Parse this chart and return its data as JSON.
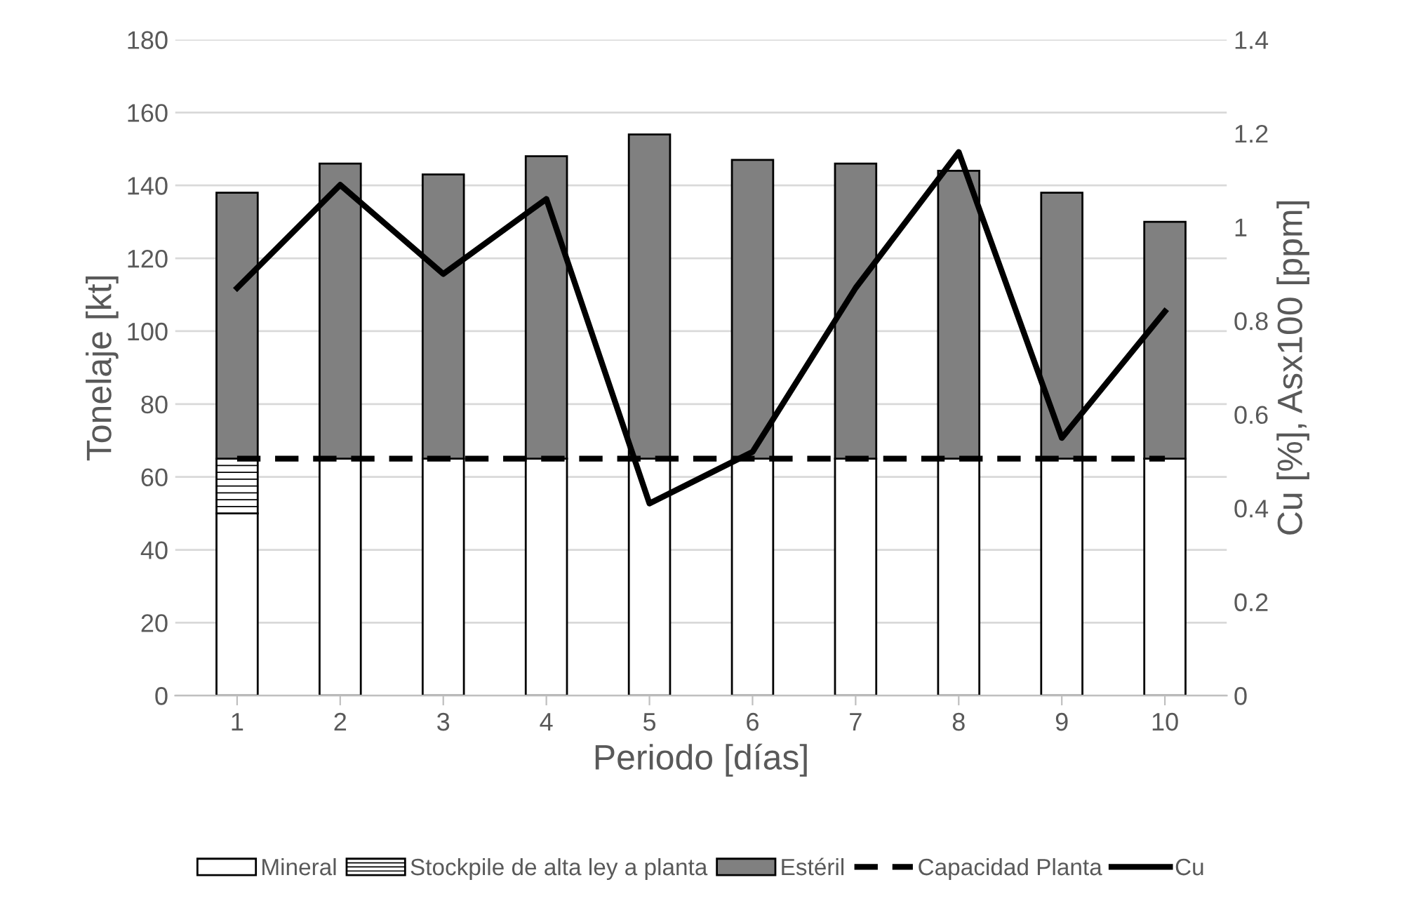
{
  "chart_data": {
    "type": "bar",
    "stacked": true,
    "xlabel": "Periodo [días]",
    "ylabel": "Tonelaje [kt]",
    "y2label": "Cu [%], Asx100 [ppm]",
    "categories": [
      "1",
      "2",
      "3",
      "4",
      "5",
      "6",
      "7",
      "8",
      "9",
      "10"
    ],
    "series": [
      {
        "name": "Mineral",
        "color": "#ffffff",
        "values": [
          50,
          65,
          65,
          65,
          65,
          65,
          65,
          65,
          65,
          65
        ]
      },
      {
        "name": "Stockpile de alta ley a planta",
        "color": "#ffffff",
        "values": [
          15,
          0,
          0,
          0,
          0,
          0,
          0,
          0,
          0,
          0
        ]
      },
      {
        "name": "Estéril",
        "color": "#808080",
        "values": [
          73,
          81,
          78,
          83,
          89,
          82,
          81,
          79,
          73,
          65
        ]
      },
      {
        "name": "Capacidad Planta",
        "type": "line",
        "color": "#000000",
        "line_style": "dashed",
        "values": [
          65,
          65,
          65,
          65,
          65,
          65,
          65,
          65,
          65,
          65
        ]
      },
      {
        "name": "Cu",
        "type": "line",
        "axis": "y2",
        "color": "#000000",
        "line_style": "solid",
        "values": [
          0.87,
          1.09,
          0.9,
          1.06,
          0.41,
          0.52,
          0.87,
          1.16,
          0.55,
          0.82
        ]
      }
    ],
    "ylim": [
      0,
      180
    ],
    "yticks": [
      0,
      20,
      40,
      60,
      80,
      100,
      120,
      140,
      160,
      180
    ],
    "y2lim": [
      0,
      1.4
    ],
    "y2ticks": [
      0,
      0.2,
      0.4,
      0.6,
      0.8,
      1,
      1.2,
      1.4
    ],
    "grid": "y",
    "legend": "bottom",
    "marker": "none"
  }
}
